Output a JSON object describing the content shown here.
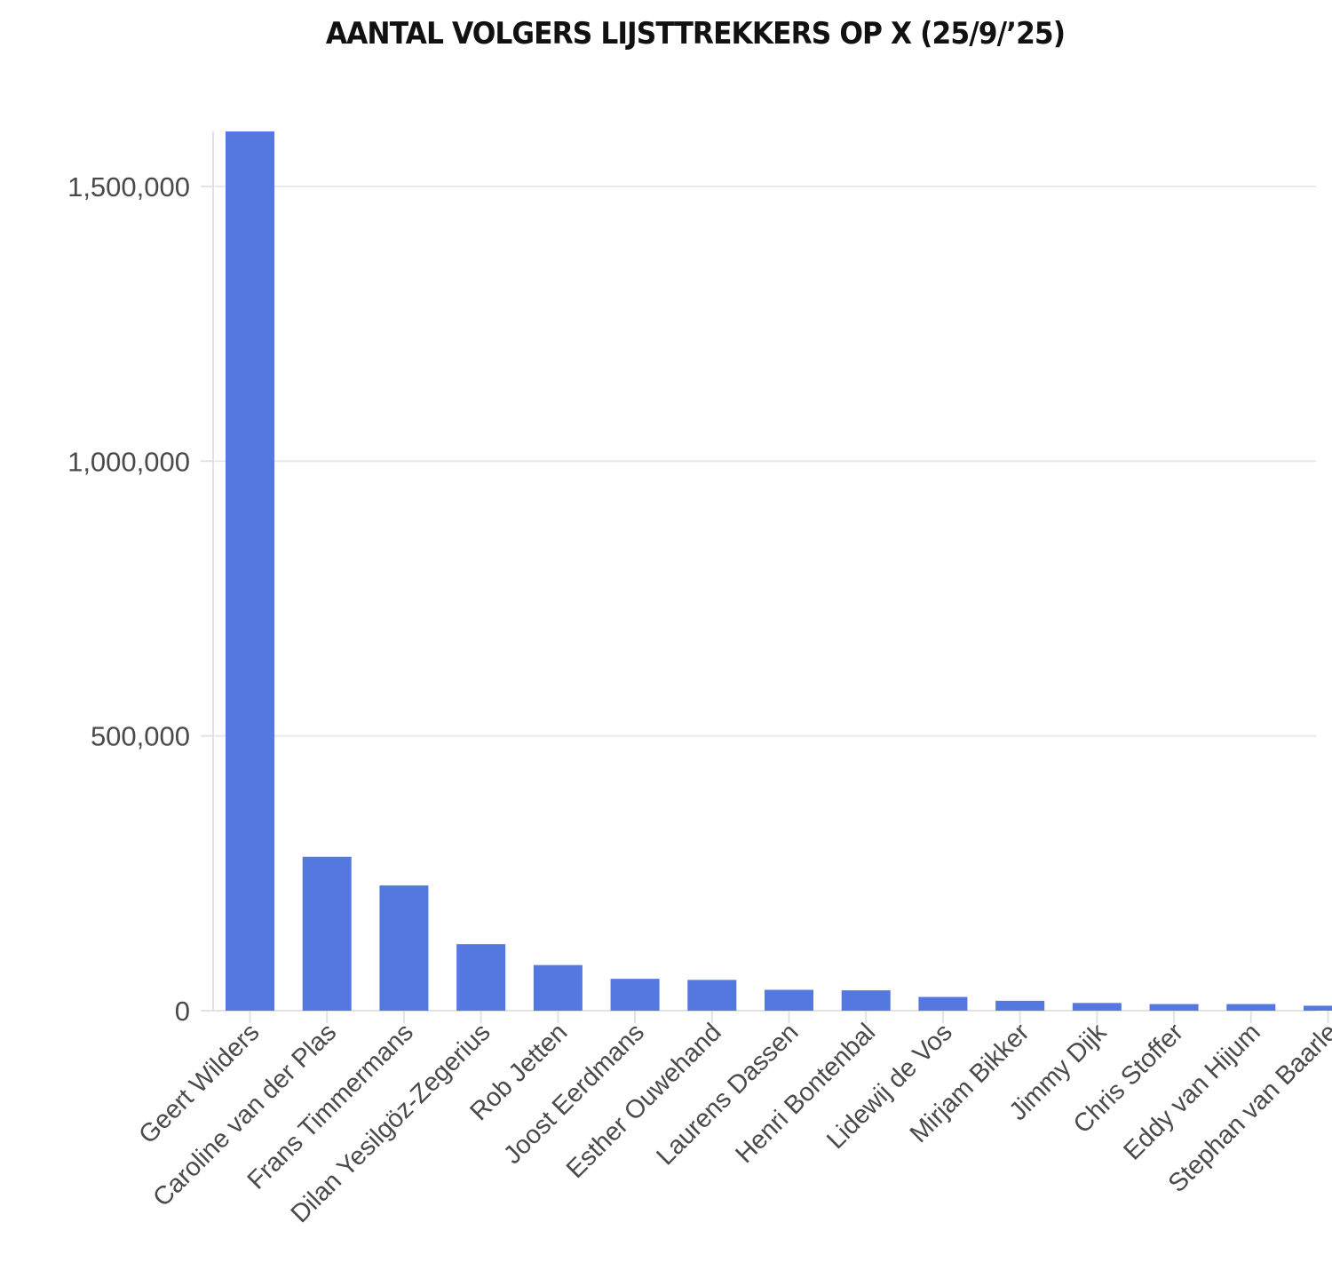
{
  "chart_data": {
    "type": "bar",
    "title": "AANTAL VOLGERS LIJSTTREKKERS OP X (25/9/’25)",
    "xlabel": "",
    "ylabel": "",
    "categories": [
      "Geert Wilders",
      "Caroline van der Plas",
      "Frans Timmermans",
      "Dilan Yesilgöz-Zegerius",
      "Rob Jetten",
      "Joost Eerdmans",
      "Esther Ouwehand",
      "Laurens Dassen",
      "Henri Bontenbal",
      "Lidewij de Vos",
      "Mirjam Bikker",
      "Jimmy Dijk",
      "Chris Stoffer",
      "Eddy van Hijum",
      "Stephan van Baarle"
    ],
    "values": [
      1600000,
      280000,
      228000,
      121000,
      83000,
      58000,
      56000,
      38000,
      37000,
      25000,
      18000,
      14000,
      12000,
      12000,
      9000
    ],
    "ylim": [
      0,
      1600000
    ],
    "yticks": [
      0,
      500000,
      1000000,
      1500000
    ],
    "ytick_labels": [
      "0",
      "500,000",
      "1,000,000",
      "1,500,000"
    ],
    "grid": true,
    "legend": "none",
    "bar_color": "#5478DF",
    "grid_color": "#e8e8e8"
  }
}
